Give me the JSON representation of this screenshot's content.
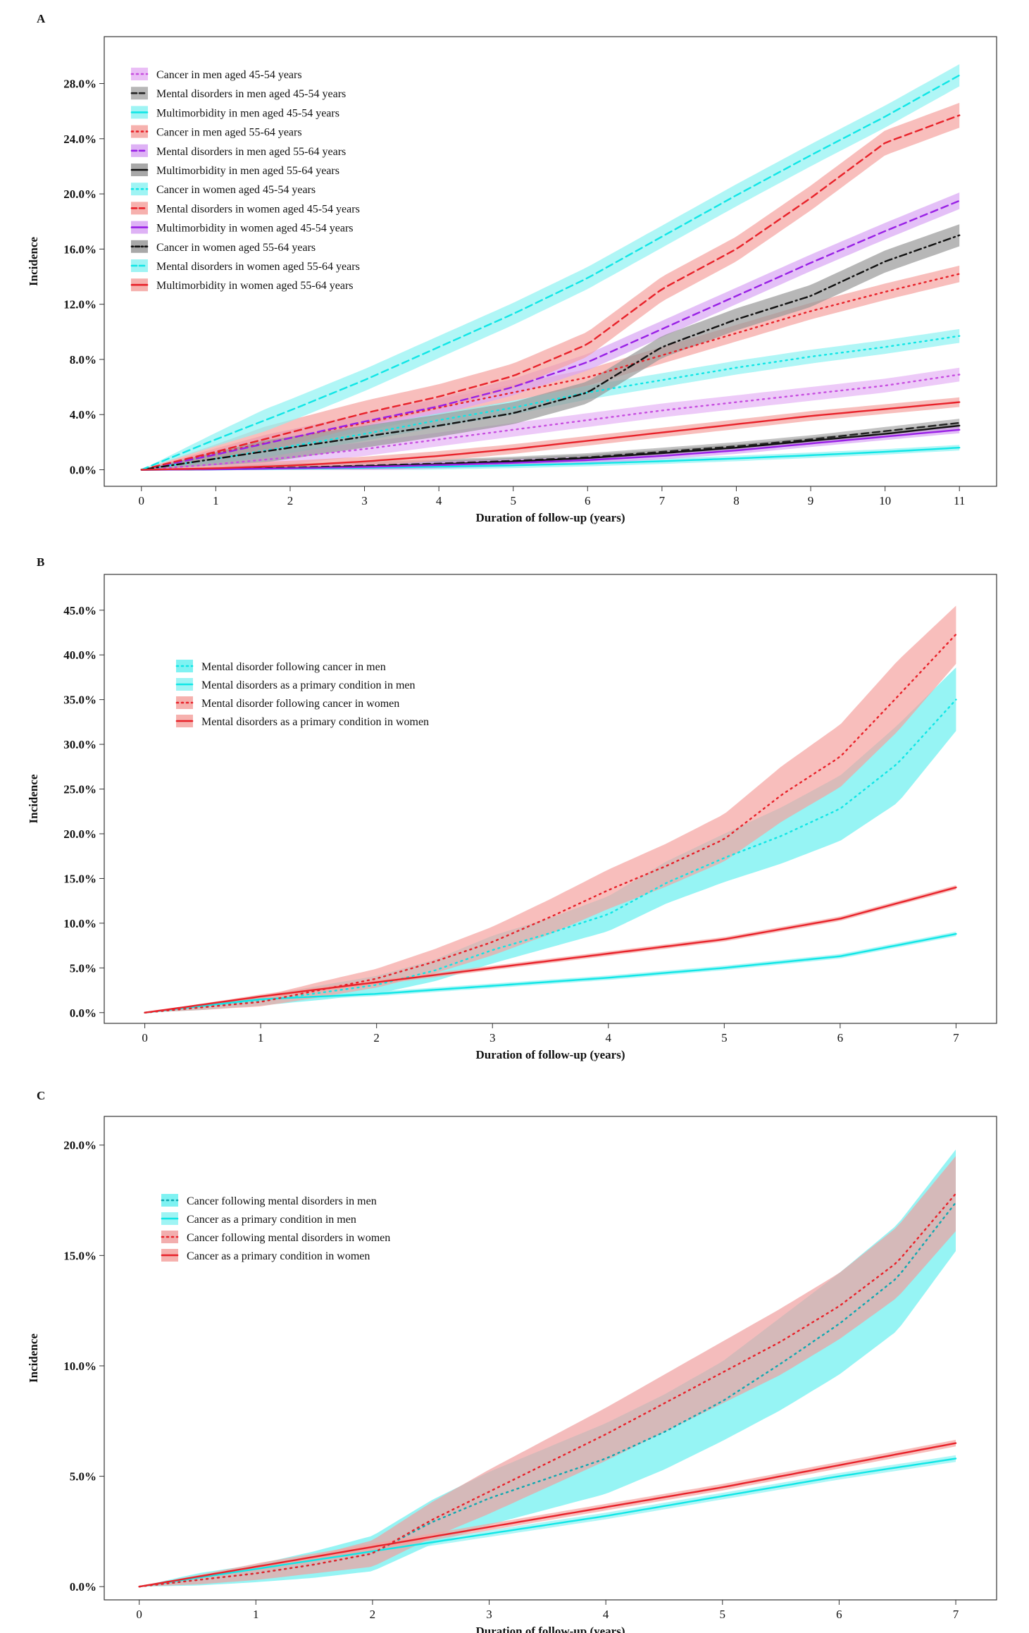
{
  "chart_data": [
    {
      "type": "line",
      "panel": "A",
      "title": "",
      "xlabel": "Duration of follow-up (years)",
      "ylabel": "Incidence",
      "xlim": [
        -0.5,
        11.5
      ],
      "ylim": [
        -1.2,
        31.4
      ],
      "xticks": [
        0,
        1,
        2,
        3,
        4,
        5,
        6,
        7,
        8,
        9,
        10,
        11
      ],
      "yticks": [
        0,
        4,
        8,
        12,
        16,
        20,
        24,
        28
      ],
      "ytick_labels": [
        "0.0%",
        "4.0%",
        "8.0%",
        "12.0%",
        "16.0%",
        "20.0%",
        "24.0%",
        "28.0%"
      ],
      "legend_position": "top-left",
      "series": [
        {
          "name": "Cancer in men aged 45-54 years",
          "color": "#c74ee0",
          "band": "#e6b3f5",
          "dash": "dot",
          "x": [
            0,
            1,
            2,
            3,
            4,
            5,
            6,
            7,
            8,
            9,
            10,
            11
          ],
          "y": [
            0,
            0.4,
            0.9,
            1.5,
            2.2,
            2.9,
            3.6,
            4.3,
            4.9,
            5.5,
            6.1,
            6.9
          ],
          "ci": 0.5
        },
        {
          "name": "Mental disorders in men aged 45-54 years",
          "color": "#222222",
          "band": "#aaaaaa",
          "dash": "dash",
          "x": [
            0,
            1,
            2,
            3,
            4,
            5,
            6,
            7,
            8,
            9,
            10,
            11
          ],
          "y": [
            0,
            0.05,
            0.15,
            0.3,
            0.45,
            0.65,
            0.9,
            1.3,
            1.7,
            2.2,
            2.8,
            3.4
          ],
          "ci": 0.3
        },
        {
          "name": "Multimorbidity in men aged 45-54 years",
          "color": "#10e6e6",
          "band": "#8ef2f2",
          "dash": "solid",
          "x": [
            0,
            1,
            2,
            3,
            4,
            5,
            6,
            7,
            8,
            9,
            10,
            11
          ],
          "y": [
            0,
            0.02,
            0.07,
            0.14,
            0.22,
            0.32,
            0.45,
            0.62,
            0.82,
            1.05,
            1.3,
            1.6
          ],
          "ci": 0.2
        },
        {
          "name": "Cancer in men aged 55-64 years",
          "color": "#e8222a",
          "band": "#f5a3a0",
          "dash": "dot",
          "x": [
            0,
            1,
            2,
            3,
            4,
            5,
            6,
            7,
            8,
            9,
            10,
            11
          ],
          "y": [
            0,
            1.2,
            2.3,
            3.4,
            4.5,
            5.6,
            6.7,
            8.3,
            9.9,
            11.5,
            12.9,
            14.2
          ],
          "ci": 0.6
        },
        {
          "name": "Mental disorders in men aged 55-64 years",
          "color": "#9920e6",
          "band": "#d8a5f3",
          "dash": "dash",
          "x": [
            0,
            1,
            2,
            3,
            4,
            5,
            6,
            7,
            8,
            9,
            10,
            11
          ],
          "y": [
            0,
            1.1,
            2.3,
            3.5,
            4.6,
            6.0,
            7.8,
            10.2,
            12.6,
            15.0,
            17.3,
            19.5
          ],
          "ci": 0.6
        },
        {
          "name": "Multimorbidity in men aged 55-64 years",
          "color": "#111111",
          "band": "#999999",
          "dash": "solid",
          "x": [
            0,
            1,
            2,
            3,
            4,
            5,
            6,
            7,
            8,
            9,
            10,
            11
          ],
          "y": [
            0,
            0.04,
            0.12,
            0.25,
            0.4,
            0.6,
            0.85,
            1.2,
            1.6,
            2.1,
            2.6,
            3.2
          ],
          "ci": 0.25
        },
        {
          "name": "Cancer in women aged 45-54 years",
          "color": "#10e6e6",
          "band": "#8ef2f2",
          "dash": "dot",
          "x": [
            0,
            1,
            2,
            3,
            4,
            5,
            6,
            7,
            8,
            9,
            10,
            11
          ],
          "y": [
            0,
            0.8,
            1.7,
            2.6,
            3.6,
            4.5,
            5.6,
            6.5,
            7.4,
            8.2,
            8.9,
            9.7
          ],
          "ci": 0.5
        },
        {
          "name": "Mental disorders in women aged 45-54 years",
          "color": "#e8222a",
          "band": "#f5a3a0",
          "dash": "dash",
          "x": [
            0,
            1,
            2,
            3,
            4,
            5,
            6,
            7,
            8,
            9,
            10,
            11
          ],
          "y": [
            0,
            1.3,
            2.7,
            4.1,
            5.3,
            6.8,
            9.1,
            13.1,
            16.0,
            19.7,
            23.7,
            25.7
          ],
          "ci": 0.9
        },
        {
          "name": "Multimorbidity in women aged 45-54 years",
          "color": "#9920e6",
          "band": "#d8a5f3",
          "dash": "solid",
          "x": [
            0,
            1,
            2,
            3,
            4,
            5,
            6,
            7,
            8,
            9,
            10,
            11
          ],
          "y": [
            0,
            0.03,
            0.1,
            0.2,
            0.34,
            0.5,
            0.7,
            1.0,
            1.4,
            1.9,
            2.4,
            2.9
          ],
          "ci": 0.25
        },
        {
          "name": "Cancer in women aged 55-64 years",
          "color": "#111111",
          "band": "#999999",
          "dash": "dotdash",
          "x": [
            0,
            1,
            2,
            3,
            4,
            5,
            6,
            7,
            8,
            9,
            10,
            11
          ],
          "y": [
            0,
            0.8,
            1.6,
            2.4,
            3.2,
            4.1,
            5.6,
            8.9,
            10.9,
            12.6,
            15.1,
            17.0
          ],
          "ci": 0.8
        },
        {
          "name": "Mental disorders in women aged 55-64 years",
          "color": "#10e6e6",
          "band": "#8ef2f2",
          "dash": "dash",
          "x": [
            0,
            1,
            2,
            3,
            4,
            5,
            6,
            7,
            8,
            9,
            10,
            11
          ],
          "y": [
            0,
            2.2,
            4.3,
            6.5,
            8.9,
            11.3,
            13.9,
            16.9,
            19.9,
            22.8,
            25.6,
            28.6
          ],
          "ci": 0.8
        },
        {
          "name": "Multimorbidity in women aged 55-64 years",
          "color": "#e8222a",
          "band": "#f5a3a0",
          "dash": "solid",
          "x": [
            0,
            1,
            2,
            3,
            4,
            5,
            6,
            7,
            8,
            9,
            10,
            11
          ],
          "y": [
            0,
            0.1,
            0.3,
            0.6,
            1.0,
            1.5,
            2.1,
            2.7,
            3.3,
            3.9,
            4.4,
            4.9
          ],
          "ci": 0.35
        }
      ]
    },
    {
      "type": "line",
      "panel": "B",
      "title": "",
      "xlabel": "Duration of follow-up (years)",
      "ylabel": "Incidence",
      "xlim": [
        -0.35,
        7.35
      ],
      "ylim": [
        -1.2,
        49
      ],
      "xticks": [
        0,
        1,
        2,
        3,
        4,
        5,
        6,
        7
      ],
      "yticks": [
        0,
        5,
        10,
        15,
        20,
        25,
        30,
        35,
        40,
        45
      ],
      "ytick_labels": [
        "0.0%",
        "5.0%",
        "10.0%",
        "15.0%",
        "20.0%",
        "25.0%",
        "30.0%",
        "35.0%",
        "40.0%",
        "45.0%"
      ],
      "legend_position": "top-left",
      "series": [
        {
          "name": "Mental disorder following cancer in men",
          "color": "#10e6e6",
          "band": "#69f0f0",
          "dash": "dot",
          "x": [
            0,
            0.5,
            1,
            1.5,
            2,
            2.5,
            3,
            3.5,
            4,
            4.5,
            5,
            5.5,
            6,
            6.5,
            7
          ],
          "y": [
            0,
            0.6,
            1.3,
            2.2,
            3.1,
            4.7,
            7.0,
            8.9,
            11.0,
            14.5,
            17.3,
            19.8,
            22.8,
            27.9,
            35.0
          ],
          "ci_low": [
            0,
            0.3,
            0.8,
            1.4,
            2.1,
            3.5,
            5.5,
            7.3,
            9.1,
            12.2,
            14.6,
            16.7,
            19.2,
            23.5,
            31.5
          ],
          "ci_high": [
            0,
            0.9,
            1.8,
            3.0,
            4.1,
            5.9,
            8.6,
            10.6,
            13.0,
            16.9,
            20.0,
            23.0,
            26.5,
            32.2,
            38.6
          ]
        },
        {
          "name": "Mental disorders as a primary condition in men",
          "color": "#10e6e6",
          "band": "#8ef2f2",
          "dash": "solid",
          "x": [
            0,
            1,
            2,
            3,
            4,
            5,
            6,
            7
          ],
          "y": [
            0,
            1.5,
            2.1,
            3.0,
            3.9,
            5.0,
            6.3,
            8.8
          ],
          "ci": 0.25
        },
        {
          "name": "Mental disorder following cancer in women",
          "color": "#e8222a",
          "band": "#f5a3a0",
          "dash": "dot",
          "x": [
            0,
            0.5,
            1,
            1.5,
            2,
            2.5,
            3,
            3.5,
            4,
            4.5,
            5,
            5.5,
            6,
            6.5,
            7
          ],
          "y": [
            0,
            0.6,
            1.2,
            2.5,
            3.8,
            5.7,
            7.9,
            10.7,
            13.7,
            16.4,
            19.4,
            24.4,
            28.6,
            35.4,
            42.3
          ],
          "ci_low": [
            0,
            0.3,
            0.7,
            1.7,
            2.8,
            4.4,
            6.4,
            8.8,
            11.6,
            14.1,
            16.9,
            21.4,
            25.2,
            31.5,
            39.0
          ],
          "ci_high": [
            0,
            0.9,
            1.8,
            3.4,
            4.9,
            7.1,
            9.6,
            12.7,
            16.0,
            18.9,
            22.2,
            27.6,
            32.2,
            39.4,
            45.5
          ]
        },
        {
          "name": "Mental disorders  as a primary condition in women",
          "color": "#e8222a",
          "band": "#f5a3a0",
          "dash": "solid",
          "x": [
            0,
            1,
            2,
            3,
            4,
            5,
            6,
            7
          ],
          "y": [
            0,
            1.8,
            3.4,
            5.0,
            6.6,
            8.2,
            10.5,
            14.0
          ],
          "ci": 0.25
        }
      ]
    },
    {
      "type": "line",
      "panel": "C",
      "title": "",
      "xlabel": "Duration of follow-up (years)",
      "ylabel": "Incidence",
      "xlim": [
        -0.3,
        7.35
      ],
      "ylim": [
        -0.6,
        21.3
      ],
      "xticks": [
        0,
        1,
        2,
        3,
        4,
        5,
        6,
        7
      ],
      "yticks": [
        0,
        5,
        10,
        15,
        20
      ],
      "ytick_labels": [
        "0.0%",
        "5.0%",
        "10.0%",
        "15.0%",
        "20.0%"
      ],
      "legend_position": "top-left",
      "series": [
        {
          "name": "Cancer following mental disorders in men",
          "color": "#10a8b0",
          "band": "#69f0f0",
          "dash": "dot",
          "x": [
            0,
            0.5,
            1,
            1.5,
            2,
            2.5,
            3,
            3.5,
            4,
            4.5,
            5,
            5.5,
            6,
            6.5,
            7
          ],
          "y": [
            0,
            0.3,
            0.6,
            1.0,
            1.5,
            2.9,
            4.0,
            4.9,
            5.8,
            7.0,
            8.4,
            10.1,
            11.9,
            14.0,
            17.4
          ],
          "ci_low": [
            0,
            0.05,
            0.2,
            0.4,
            0.7,
            1.9,
            2.8,
            3.5,
            4.2,
            5.3,
            6.6,
            8.0,
            9.6,
            11.6,
            15.2
          ],
          "ci_high": [
            0,
            0.6,
            1.0,
            1.6,
            2.3,
            3.9,
            5.2,
            6.3,
            7.4,
            8.7,
            10.2,
            12.2,
            14.2,
            16.4,
            19.8
          ]
        },
        {
          "name": "Cancer as a primary condition in men",
          "color": "#10e6e6",
          "band": "#8ef2f2",
          "dash": "solid",
          "x": [
            0,
            1,
            2,
            3,
            4,
            5,
            6,
            7
          ],
          "y": [
            0,
            0.8,
            1.6,
            2.4,
            3.2,
            4.1,
            5.0,
            5.8
          ],
          "ci": 0.15
        },
        {
          "name": "Cancer following mental disorders in women",
          "color": "#e8222a",
          "band": "#f0a0a0",
          "dash": "dot",
          "x": [
            0,
            0.5,
            1,
            1.5,
            2,
            2.5,
            3,
            3.5,
            4,
            4.5,
            5,
            5.5,
            6,
            6.5,
            7
          ],
          "y": [
            0,
            0.3,
            0.6,
            1.0,
            1.5,
            3.0,
            4.3,
            5.6,
            6.9,
            8.3,
            9.7,
            11.1,
            12.7,
            14.7,
            17.8
          ],
          "ci_low": [
            0,
            0.1,
            0.3,
            0.6,
            0.9,
            2.2,
            3.3,
            4.5,
            5.7,
            7.0,
            8.3,
            9.6,
            11.2,
            13.1,
            16.1
          ],
          "ci_high": [
            0,
            0.5,
            0.9,
            1.4,
            2.1,
            3.8,
            5.3,
            6.7,
            8.1,
            9.6,
            11.1,
            12.6,
            14.2,
            16.3,
            19.5
          ]
        },
        {
          "name": "Cancer as a primary condition in women",
          "color": "#e8222a",
          "band": "#f5a3a0",
          "dash": "solid",
          "x": [
            0,
            1,
            2,
            3,
            4,
            5,
            6,
            7
          ],
          "y": [
            0,
            0.9,
            1.8,
            2.7,
            3.6,
            4.5,
            5.5,
            6.5
          ],
          "ci": 0.15
        }
      ]
    }
  ],
  "panel_labels": [
    "A",
    "B",
    "C"
  ]
}
